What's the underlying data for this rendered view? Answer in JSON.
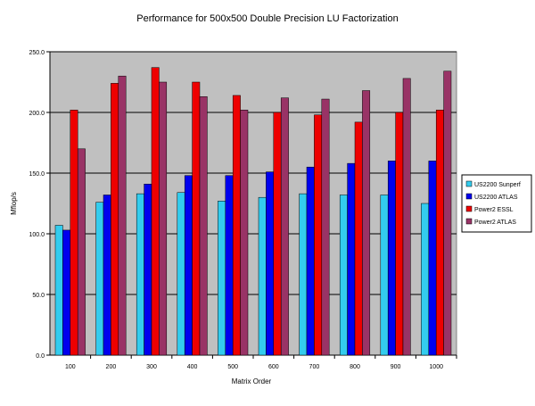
{
  "chart_data": {
    "type": "bar",
    "title": "Performance for 500x500 Double Precision LU Factorization",
    "xlabel": "Matrix Order",
    "ylabel": "Mflop/s",
    "ylim": [
      0,
      250
    ],
    "yticks": [
      0,
      50,
      100,
      150,
      200,
      250
    ],
    "ytick_labels": [
      "0.0",
      "50.0",
      "100.0",
      "150.0",
      "200.0",
      "250.0"
    ],
    "grid": true,
    "legend_position": "right",
    "plot_background": "#c0c0c0",
    "categories": [
      "100",
      "200",
      "300",
      "400",
      "500",
      "600",
      "700",
      "800",
      "900",
      "1000"
    ],
    "series": [
      {
        "name": "US2200 Sunperf",
        "color": "#33ccee",
        "values": [
          107,
          126,
          133,
          134,
          127,
          130,
          133,
          132,
          132,
          125
        ]
      },
      {
        "name": "US2200 ATLAS",
        "color": "#0000ee",
        "values": [
          103,
          132,
          141,
          148,
          148,
          151,
          155,
          158,
          160,
          160
        ]
      },
      {
        "name": "Power2 ESSL",
        "color": "#ee0000",
        "values": [
          202,
          224,
          237,
          225,
          214,
          200,
          198,
          192,
          200,
          202
        ]
      },
      {
        "name": "Power2 ATLAS",
        "color": "#993366",
        "values": [
          170,
          230,
          225,
          213,
          202,
          212,
          211,
          218,
          228,
          234
        ]
      }
    ]
  }
}
